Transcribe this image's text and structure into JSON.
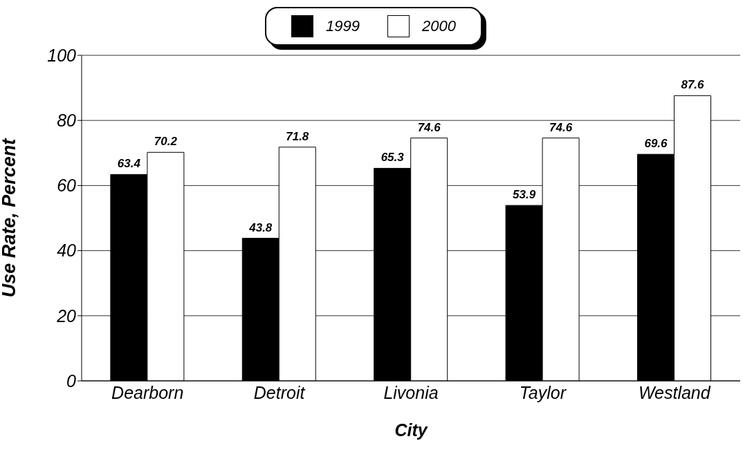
{
  "chart_data": {
    "type": "bar",
    "xlabel": "City",
    "ylabel": "Use Rate, Percent",
    "categories": [
      "Dearborn",
      "Detroit",
      "Livonia",
      "Taylor",
      "Westland"
    ],
    "series": [
      {
        "name": "1999",
        "color": "#000000",
        "values": [
          63.4,
          43.8,
          65.3,
          53.9,
          69.6
        ]
      },
      {
        "name": "2000",
        "color": "#ffffff",
        "values": [
          70.2,
          71.8,
          74.6,
          74.6,
          87.6
        ]
      }
    ],
    "ylim": [
      0,
      100
    ],
    "yticks": [
      0,
      20,
      40,
      60,
      80,
      100
    ],
    "grid": "y",
    "legend": "top",
    "data_labels": true
  }
}
